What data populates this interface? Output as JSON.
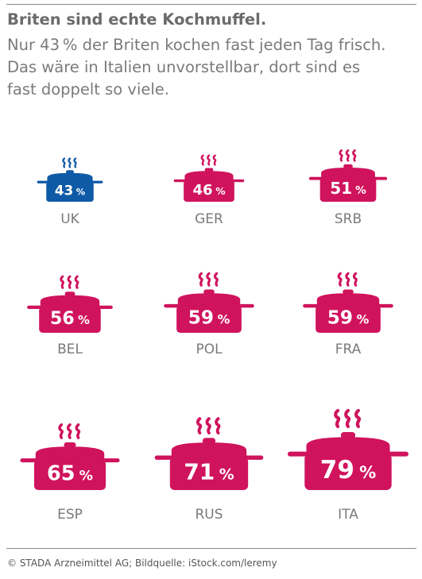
{
  "header": {
    "title": "Briten sind echte Kochmuffel.",
    "subtitle_lines": [
      "Nur 43 % der Briten kochen fast jeden Tag frisch.",
      "Das wäre in Italien unvorstellbar, dort sind es",
      "fast doppelt so viele."
    ]
  },
  "chart_data": {
    "type": "bar",
    "categories": [
      "UK",
      "GER",
      "SRB",
      "BEL",
      "POL",
      "FRA",
      "ESP",
      "RUS",
      "ITA"
    ],
    "values": [
      43,
      46,
      51,
      56,
      59,
      59,
      65,
      71,
      79
    ],
    "value_suffix": "%",
    "highlight": "UK",
    "colors": {
      "highlight": "#0e5aa7",
      "default": "#d0135d",
      "label": "#7a7a7a"
    }
  },
  "footer": {
    "credit": "© STADA Arzneimittel AG; Bildquelle: iStock.com/leremy"
  }
}
